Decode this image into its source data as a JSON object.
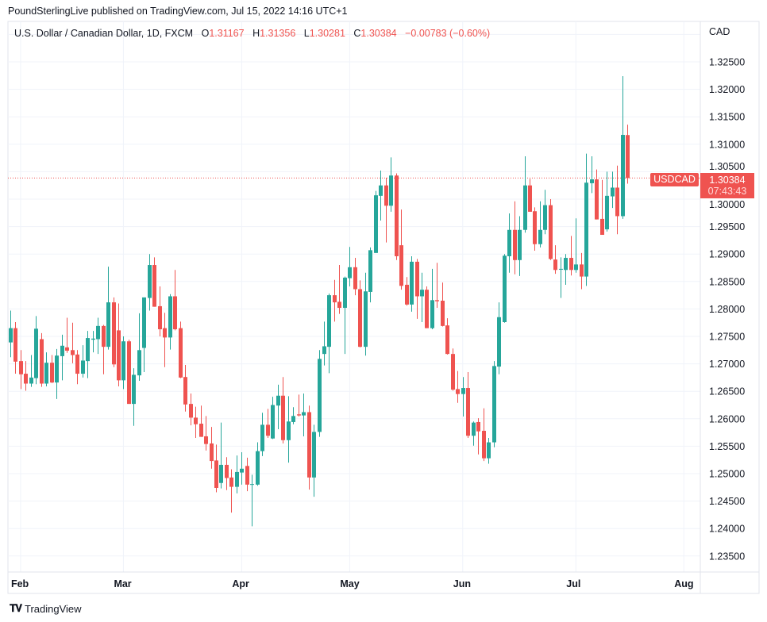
{
  "header": {
    "published": "PoundSterlingLive published on TradingView.com, Jul 15, 2022 14:16 UTC+1"
  },
  "legend": {
    "title": "U.S. Dollar / Canadian Dollar, 1D, FXCM",
    "open_label": "O",
    "open": "1.31167",
    "high_label": "H",
    "high": "1.31356",
    "low_label": "L",
    "low": "1.30281",
    "close_label": "C",
    "close": "1.30384",
    "change": "−0.00783 (−0.60%)"
  },
  "price_axis": {
    "currency": "CAD"
  },
  "last_price": {
    "symbol": "USDCAD",
    "price": "1.30384",
    "countdown": "07:43:43"
  },
  "footer": {
    "brand": "TradingView"
  },
  "colors": {
    "up": "#26a69a",
    "down": "#ef5350",
    "grid": "#f0f3fa",
    "text": "#131722"
  },
  "chart_data": {
    "type": "candlestick",
    "symbol": "USDCAD",
    "interval": "1D",
    "ylim": [
      1.2315,
      1.334
    ],
    "grid": true,
    "y_ticks": [
      "1.23500",
      "1.24000",
      "1.24500",
      "1.25000",
      "1.25500",
      "1.26000",
      "1.26500",
      "1.27000",
      "1.27500",
      "1.28000",
      "1.28500",
      "1.29000",
      "1.29500",
      "1.30000",
      "1.30500",
      "1.31000",
      "1.31500",
      "1.32000",
      "1.32500"
    ],
    "x_ticks": [
      {
        "label": "Feb",
        "date": "2022-02-01"
      },
      {
        "label": "Mar",
        "date": "2022-03-01"
      },
      {
        "label": "Apr",
        "date": "2022-04-01"
      },
      {
        "label": "May",
        "date": "2022-05-02"
      },
      {
        "label": "Jun",
        "date": "2022-06-01"
      },
      {
        "label": "Jul",
        "date": "2022-07-01"
      },
      {
        "label": "Aug",
        "date": "2022-08-01"
      }
    ],
    "last_price_line": 1.30384,
    "columns": [
      "date",
      "open",
      "high",
      "low",
      "close"
    ],
    "candles": [
      [
        "2022-01-28",
        1.2739,
        1.2797,
        1.2712,
        1.2765
      ],
      [
        "2022-01-31",
        1.2765,
        1.2776,
        1.2682,
        1.2704
      ],
      [
        "2022-02-01",
        1.2705,
        1.2725,
        1.2654,
        1.2681
      ],
      [
        "2022-02-02",
        1.2682,
        1.2705,
        1.2651,
        1.2664
      ],
      [
        "2022-02-03",
        1.2664,
        1.2716,
        1.2658,
        1.2675
      ],
      [
        "2022-02-04",
        1.2674,
        1.2787,
        1.2663,
        1.2764
      ],
      [
        "2022-02-07",
        1.2745,
        1.2756,
        1.2658,
        1.2664
      ],
      [
        "2022-02-08",
        1.2664,
        1.2721,
        1.2659,
        1.2702
      ],
      [
        "2022-02-09",
        1.2702,
        1.2716,
        1.2665,
        1.2666
      ],
      [
        "2022-02-10",
        1.2666,
        1.2727,
        1.2636,
        1.2715
      ],
      [
        "2022-02-11",
        1.2714,
        1.2753,
        1.267,
        1.2733
      ],
      [
        "2022-02-14",
        1.273,
        1.2784,
        1.272,
        1.2724
      ],
      [
        "2022-02-15",
        1.2725,
        1.2775,
        1.2701,
        1.2716
      ],
      [
        "2022-02-16",
        1.2717,
        1.2725,
        1.2663,
        1.2682
      ],
      [
        "2022-02-17",
        1.2682,
        1.2734,
        1.2675,
        1.2706
      ],
      [
        "2022-02-18",
        1.2705,
        1.276,
        1.2674,
        1.2747
      ],
      [
        "2022-02-21",
        1.2744,
        1.276,
        1.2721,
        1.2746
      ],
      [
        "2022-02-22",
        1.2745,
        1.2784,
        1.2718,
        1.2769
      ],
      [
        "2022-02-23",
        1.2769,
        1.2771,
        1.2681,
        1.2731
      ],
      [
        "2022-02-24",
        1.2731,
        1.2877,
        1.2726,
        1.2812
      ],
      [
        "2022-02-25",
        1.2812,
        1.2821,
        1.2694,
        1.2699
      ],
      [
        "2022-02-28",
        1.2761,
        1.281,
        1.2659,
        1.267
      ],
      [
        "2022-03-01",
        1.267,
        1.275,
        1.2654,
        1.2741
      ],
      [
        "2022-03-02",
        1.2741,
        1.2744,
        1.2627,
        1.2627
      ],
      [
        "2022-03-03",
        1.2627,
        1.2692,
        1.2587,
        1.268
      ],
      [
        "2022-03-04",
        1.2679,
        1.2792,
        1.2669,
        1.2725
      ],
      [
        "2022-03-07",
        1.2729,
        1.2821,
        1.2685,
        1.2821
      ],
      [
        "2022-03-08",
        1.282,
        1.29,
        1.2797,
        1.288
      ],
      [
        "2022-03-09",
        1.288,
        1.2894,
        1.2804,
        1.2804
      ],
      [
        "2022-03-10",
        1.2805,
        1.2841,
        1.275,
        1.2763
      ],
      [
        "2022-03-11",
        1.2765,
        1.2793,
        1.2694,
        1.2748
      ],
      [
        "2022-03-14",
        1.2748,
        1.2827,
        1.2726,
        1.2823
      ],
      [
        "2022-03-15",
        1.2823,
        1.2871,
        1.2761,
        1.2763
      ],
      [
        "2022-03-16",
        1.2765,
        1.2777,
        1.2674,
        1.2675
      ],
      [
        "2022-03-17",
        1.2676,
        1.2698,
        1.2613,
        1.2626
      ],
      [
        "2022-03-18",
        1.2627,
        1.2646,
        1.2588,
        1.2602
      ],
      [
        "2022-03-21",
        1.2602,
        1.2622,
        1.2565,
        1.259
      ],
      [
        "2022-03-22",
        1.2591,
        1.2624,
        1.2567,
        1.2567
      ],
      [
        "2022-03-23",
        1.2568,
        1.2605,
        1.2542,
        1.2554
      ],
      [
        "2022-03-24",
        1.2555,
        1.2585,
        1.2509,
        1.2523
      ],
      [
        "2022-03-25",
        1.2524,
        1.2553,
        1.2466,
        1.2474
      ],
      [
        "2022-03-28",
        1.2483,
        1.2593,
        1.2473,
        1.2516
      ],
      [
        "2022-03-29",
        1.2516,
        1.253,
        1.247,
        1.2492
      ],
      [
        "2022-03-30",
        1.2493,
        1.2508,
        1.2429,
        1.2476
      ],
      [
        "2022-03-31",
        1.2476,
        1.2533,
        1.2464,
        1.2503
      ],
      [
        "2022-04-01",
        1.2502,
        1.2539,
        1.248,
        1.2509
      ],
      [
        "2022-04-04",
        1.2514,
        1.2529,
        1.2468,
        1.248
      ],
      [
        "2022-04-05",
        1.248,
        1.2498,
        1.2404,
        1.2481
      ],
      [
        "2022-04-06",
        1.248,
        1.2557,
        1.2478,
        1.2541
      ],
      [
        "2022-04-07",
        1.2541,
        1.2611,
        1.2532,
        1.2589
      ],
      [
        "2022-04-08",
        1.2589,
        1.2618,
        1.2565,
        1.2569
      ],
      [
        "2022-04-11",
        1.2564,
        1.264,
        1.2563,
        1.2625
      ],
      [
        "2022-04-12",
        1.2624,
        1.2662,
        1.2581,
        1.2642
      ],
      [
        "2022-04-13",
        1.2642,
        1.2676,
        1.2555,
        1.2561
      ],
      [
        "2022-04-14",
        1.2561,
        1.2641,
        1.252,
        1.2595
      ],
      [
        "2022-04-15",
        1.2594,
        1.2621,
        1.259,
        1.2605
      ],
      [
        "2022-04-18",
        1.2608,
        1.2644,
        1.2604,
        1.2606
      ],
      [
        "2022-04-19",
        1.2606,
        1.2646,
        1.2568,
        1.2612
      ],
      [
        "2022-04-20",
        1.2612,
        1.2624,
        1.2471,
        1.2493
      ],
      [
        "2022-04-21",
        1.2493,
        1.2589,
        1.2458,
        1.2576
      ],
      [
        "2022-04-22",
        1.2576,
        1.2725,
        1.2567,
        1.2709
      ],
      [
        "2022-04-25",
        1.2718,
        1.2777,
        1.2697,
        1.2732
      ],
      [
        "2022-04-26",
        1.2731,
        1.2828,
        1.2683,
        1.2825
      ],
      [
        "2022-04-27",
        1.2825,
        1.2853,
        1.2777,
        1.2812
      ],
      [
        "2022-04-28",
        1.2813,
        1.288,
        1.2791,
        1.2802
      ],
      [
        "2022-04-29",
        1.2802,
        1.2859,
        1.2718,
        1.2857
      ],
      [
        "2022-05-02",
        1.2856,
        1.2913,
        1.2841,
        1.2876
      ],
      [
        "2022-05-03",
        1.2876,
        1.2893,
        1.2825,
        1.2836
      ],
      [
        "2022-05-04",
        1.2836,
        1.2852,
        1.273,
        1.2731
      ],
      [
        "2022-05-05",
        1.2731,
        1.2866,
        1.2715,
        1.2832
      ],
      [
        "2022-05-06",
        1.2831,
        1.2912,
        1.2812,
        1.2907
      ],
      [
        "2022-05-09",
        1.2902,
        1.3015,
        1.2902,
        1.3007
      ],
      [
        "2022-05-10",
        1.3006,
        1.3052,
        1.2961,
        1.3025
      ],
      [
        "2022-05-11",
        1.3025,
        1.3039,
        1.2921,
        1.2988
      ],
      [
        "2022-05-12",
        1.2988,
        1.3076,
        1.2977,
        1.3043
      ],
      [
        "2022-05-13",
        1.3043,
        1.3047,
        1.2889,
        1.2896
      ],
      [
        "2022-05-16",
        1.2916,
        1.2981,
        1.2835,
        1.2842
      ],
      [
        "2022-05-17",
        1.2844,
        1.2858,
        1.2806,
        1.2808
      ],
      [
        "2022-05-18",
        1.2808,
        1.2896,
        1.2795,
        1.2886
      ],
      [
        "2022-05-19",
        1.2886,
        1.2891,
        1.2782,
        1.2823
      ],
      [
        "2022-05-20",
        1.2823,
        1.2866,
        1.2776,
        1.2835
      ],
      [
        "2022-05-23",
        1.2835,
        1.2841,
        1.2765,
        1.2765
      ],
      [
        "2022-05-24",
        1.2765,
        1.2873,
        1.2763,
        1.2816
      ],
      [
        "2022-05-25",
        1.2816,
        1.2884,
        1.2802,
        1.2814
      ],
      [
        "2022-05-26",
        1.2815,
        1.2848,
        1.2768,
        1.2769
      ],
      [
        "2022-05-27",
        1.277,
        1.2783,
        1.2717,
        1.2718
      ],
      [
        "2022-05-30",
        1.2718,
        1.2728,
        1.2651,
        1.2653
      ],
      [
        "2022-05-31",
        1.2654,
        1.2687,
        1.2629,
        1.2645
      ],
      [
        "2022-06-01",
        1.2645,
        1.2676,
        1.2604,
        1.2656
      ],
      [
        "2022-06-02",
        1.2656,
        1.2685,
        1.2565,
        1.2569
      ],
      [
        "2022-06-03",
        1.2569,
        1.2595,
        1.2551,
        1.2593
      ],
      [
        "2022-06-06",
        1.2594,
        1.2601,
        1.2535,
        1.2577
      ],
      [
        "2022-06-07",
        1.2578,
        1.2619,
        1.2523,
        1.2528
      ],
      [
        "2022-06-08",
        1.2528,
        1.2565,
        1.2518,
        1.2557
      ],
      [
        "2022-06-09",
        1.2557,
        1.2705,
        1.2548,
        1.2696
      ],
      [
        "2022-06-10",
        1.2695,
        1.2812,
        1.2681,
        1.2785
      ],
      [
        "2022-06-13",
        1.2776,
        1.29,
        1.2775,
        1.2897
      ],
      [
        "2022-06-14",
        1.2896,
        1.2974,
        1.2866,
        1.2944
      ],
      [
        "2022-06-15",
        1.2944,
        1.2996,
        1.2863,
        1.2889
      ],
      [
        "2022-06-16",
        1.2889,
        1.2969,
        1.286,
        1.2944
      ],
      [
        "2022-06-17",
        1.2944,
        1.3078,
        1.2939,
        1.3025
      ],
      [
        "2022-06-20",
        1.3025,
        1.3037,
        1.2977,
        1.2977
      ],
      [
        "2022-06-21",
        1.2978,
        1.2985,
        1.2906,
        1.2918
      ],
      [
        "2022-06-22",
        1.2918,
        1.2996,
        1.2912,
        1.2944
      ],
      [
        "2022-06-23",
        1.2944,
        1.3017,
        1.2936,
        1.2989
      ],
      [
        "2022-06-24",
        1.2989,
        1.3,
        1.2889,
        1.2891
      ],
      [
        "2022-06-27",
        1.289,
        1.2916,
        1.2864,
        1.2871
      ],
      [
        "2022-06-28",
        1.2872,
        1.2894,
        1.282,
        1.2873
      ],
      [
        "2022-06-29",
        1.2871,
        1.29,
        1.2844,
        1.2893
      ],
      [
        "2022-06-30",
        1.2893,
        1.2933,
        1.2861,
        1.2871
      ],
      [
        "2022-07-01",
        1.2871,
        1.2965,
        1.2866,
        1.2881
      ],
      [
        "2022-07-04",
        1.2881,
        1.2902,
        1.2836,
        1.2859
      ],
      [
        "2022-07-05",
        1.2859,
        1.3083,
        1.2842,
        1.303
      ],
      [
        "2022-07-06",
        1.3029,
        1.3078,
        1.3011,
        1.3036
      ],
      [
        "2022-07-07",
        1.3036,
        1.3054,
        1.2963,
        1.2963
      ],
      [
        "2022-07-08",
        1.2964,
        1.3035,
        1.2935,
        1.2935
      ],
      [
        "2022-07-11",
        1.2945,
        1.305,
        1.2941,
        1.3006
      ],
      [
        "2022-07-12",
        1.3005,
        1.305,
        1.2984,
        1.3021
      ],
      [
        "2022-07-13",
        1.3021,
        1.3061,
        1.2936,
        1.2969
      ],
      [
        "2022-07-14",
        1.2969,
        1.3224,
        1.2964,
        1.3117
      ],
      [
        "2022-07-15",
        1.31167,
        1.31356,
        1.30281,
        1.30384
      ]
    ]
  }
}
